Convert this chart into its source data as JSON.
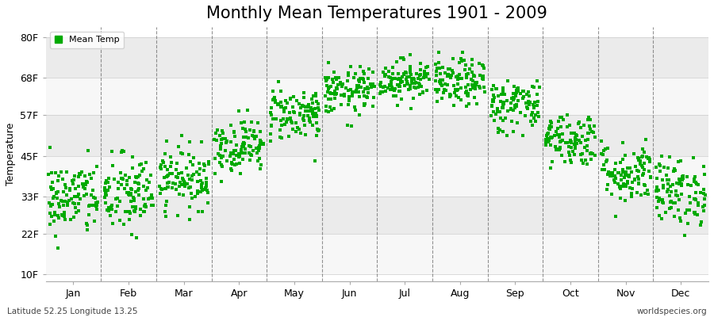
{
  "title": "Monthly Mean Temperatures 1901 - 2009",
  "ylabel": "Temperature",
  "xlabel_months": [
    "Jan",
    "Feb",
    "Mar",
    "Apr",
    "May",
    "Jun",
    "Jul",
    "Aug",
    "Sep",
    "Oct",
    "Nov",
    "Dec"
  ],
  "ytick_values": [
    10,
    22,
    33,
    45,
    57,
    68,
    80
  ],
  "ytick_labels": [
    "10F",
    "22F",
    "33F",
    "45F",
    "57F",
    "68F",
    "80F"
  ],
  "ylim": [
    8,
    83
  ],
  "dot_color": "#00aa00",
  "dot_size": 6,
  "background_color": "#ffffff",
  "plot_bg_color": "#ffffff",
  "band_colors": [
    "#ebebeb",
    "#f7f7f7"
  ],
  "legend_label": "Mean Temp",
  "bottom_left": "Latitude 52.25 Longitude 13.25",
  "bottom_right": "worldspecies.org",
  "title_fontsize": 15,
  "axis_fontsize": 9,
  "monthly_means_F": [
    32.5,
    33.5,
    38.5,
    48.0,
    57.5,
    64.0,
    67.5,
    66.5,
    60.0,
    50.0,
    40.0,
    34.5
  ],
  "monthly_std_F": [
    5.5,
    6.0,
    4.5,
    4.0,
    4.0,
    3.5,
    3.0,
    3.5,
    4.0,
    4.0,
    4.5,
    5.0
  ],
  "n_years": 109,
  "seed": 42
}
